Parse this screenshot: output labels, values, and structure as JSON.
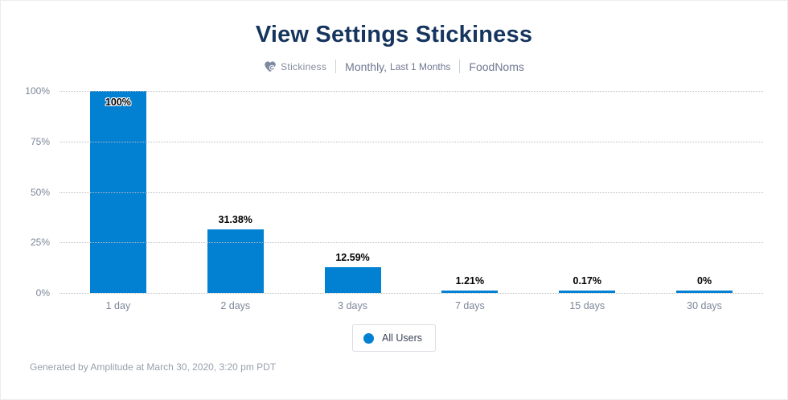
{
  "header": {
    "title": "View Settings Stickiness",
    "chart_type_label": "Stickiness",
    "period_label": "Monthly,",
    "period_sub_label": "Last 1 Months",
    "source_label": "FoodNoms"
  },
  "chart_data": {
    "type": "bar",
    "title": "View Settings Stickiness",
    "categories": [
      "1 day",
      "2 days",
      "3 days",
      "7 days",
      "15 days",
      "30 days"
    ],
    "values": [
      100,
      31.38,
      12.59,
      1.21,
      0.17,
      0
    ],
    "value_labels": [
      "100%",
      "31.38%",
      "12.59%",
      "1.21%",
      "0.17%",
      "0%"
    ],
    "series": [
      {
        "name": "All Users",
        "values": [
          100,
          31.38,
          12.59,
          1.21,
          0.17,
          0
        ]
      }
    ],
    "xlabel": "",
    "ylabel": "",
    "ylim": [
      0,
      100
    ],
    "y_ticks": [
      "0%",
      "25%",
      "50%",
      "75%",
      "100%"
    ],
    "grid": "horizontal-dotted",
    "legend_position": "bottom"
  },
  "legend": {
    "items": [
      {
        "label": "All Users",
        "color": "#0280d2"
      }
    ]
  },
  "footer": {
    "text": "Generated by Amplitude at March 30, 2020, 3:20 pm PDT"
  },
  "colors": {
    "bar": "#0280d2",
    "title": "#16355e",
    "axis_label": "#7c8699",
    "gridline": "#bcbfc4",
    "subtitle": "#6f7890"
  },
  "icons": {
    "stickiness": "heart-with-refresh-icon"
  }
}
